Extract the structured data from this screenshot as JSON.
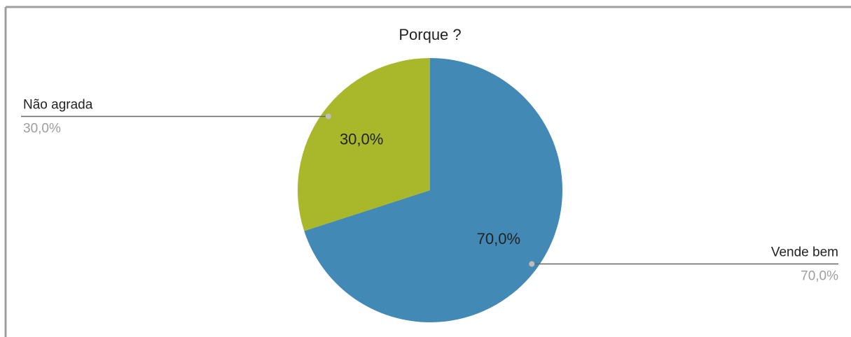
{
  "chart_data": {
    "type": "pie",
    "title": "Porque ?",
    "categories": [
      "Vende bem",
      "Não agrada"
    ],
    "values": [
      70,
      30
    ],
    "value_labels": [
      "70,0%",
      "30,0%"
    ],
    "colors": [
      "#4389b5",
      "#a8b82a"
    ]
  }
}
